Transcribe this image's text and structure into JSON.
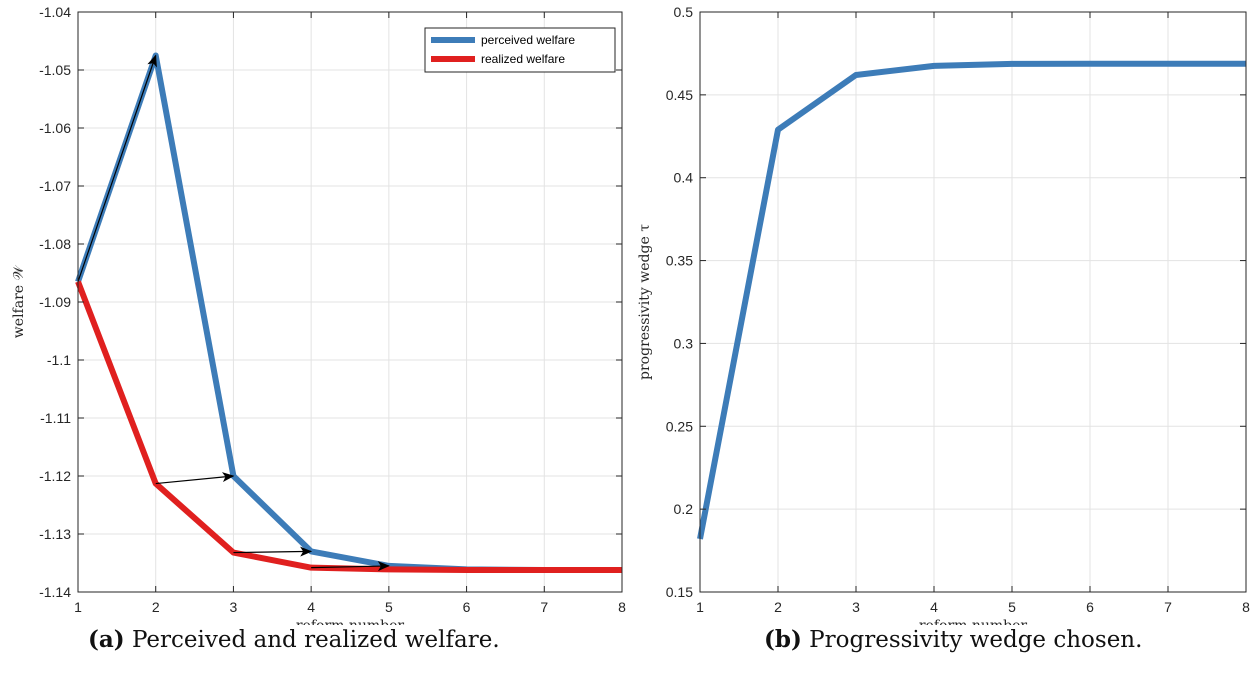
{
  "chart_data": [
    {
      "type": "line",
      "x": [
        1,
        2,
        3,
        4,
        5,
        6,
        7,
        8
      ],
      "series": [
        {
          "name": "perceived welfare",
          "color": "#3d7cb8",
          "values": [
            -1.0865,
            -1.0475,
            -1.12,
            -1.133,
            -1.1355,
            -1.1361,
            -1.1362,
            -1.1362
          ]
        },
        {
          "name": "realized welfare",
          "color": "#e0201f",
          "values": [
            -1.0865,
            -1.1213,
            -1.1332,
            -1.1358,
            -1.1361,
            -1.1362,
            -1.1362,
            -1.1362
          ]
        }
      ],
      "arrows": [
        {
          "from": [
            1,
            -1.0865
          ],
          "to": [
            2,
            -1.0475
          ]
        },
        {
          "from": [
            2,
            -1.1213
          ],
          "to": [
            3,
            -1.12
          ]
        },
        {
          "from": [
            3,
            -1.1332
          ],
          "to": [
            4,
            -1.133
          ]
        },
        {
          "from": [
            4,
            -1.1358
          ],
          "to": [
            5,
            -1.1355
          ]
        }
      ],
      "xlim": [
        1,
        8
      ],
      "ylim": [
        -1.14,
        -1.04
      ],
      "xticks": [
        "1",
        "2",
        "3",
        "4",
        "5",
        "6",
        "7",
        "8"
      ],
      "yticks": [
        "-1.04",
        "-1.05",
        "-1.06",
        "-1.07",
        "-1.08",
        "-1.09",
        "-1.1",
        "-1.11",
        "-1.12",
        "-1.13",
        "-1.14"
      ],
      "xlabel": "reform number",
      "ylabel": "welfare 𝒲",
      "grid": true,
      "legend": "top-right",
      "caption_tag": "(a)",
      "caption_text": "Perceived and realized welfare."
    },
    {
      "type": "line",
      "x": [
        1,
        2,
        3,
        4,
        5,
        6,
        7,
        8
      ],
      "series": [
        {
          "color": "#3d7cb8",
          "values": [
            0.182,
            0.429,
            0.462,
            0.4675,
            0.4687,
            0.4688,
            0.4688,
            0.4688
          ]
        }
      ],
      "xlim": [
        1,
        8
      ],
      "ylim": [
        0.15,
        0.5
      ],
      "xticks": [
        "1",
        "2",
        "3",
        "4",
        "5",
        "6",
        "7",
        "8"
      ],
      "yticks": [
        "0.15",
        "0.2",
        "0.25",
        "0.3",
        "0.35",
        "0.4",
        "0.45",
        "0.5"
      ],
      "xlabel": "reform number",
      "ylabel": "progressivity wedge τ",
      "grid": true,
      "caption_tag": "(b)",
      "caption_text": "Progressivity wedge chosen."
    }
  ]
}
